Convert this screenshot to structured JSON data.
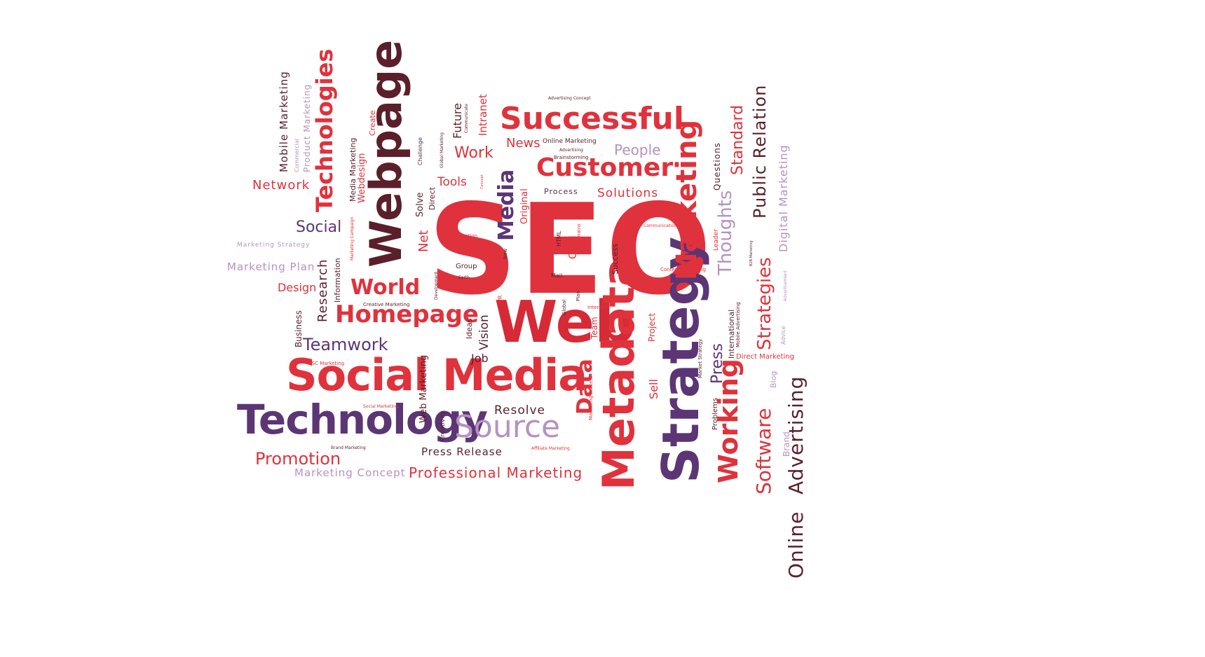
{
  "colors": {
    "red": "#e0323c",
    "dark_red": "#d62a36",
    "plum": "#5a2a4e",
    "purple": "#5c3575",
    "lavender": "#b592c2",
    "brown": "#5a1f2a",
    "pink": "#e86a70"
  },
  "words": {
    "seo": "SEO",
    "web": "Web",
    "webpage": "Webpage",
    "strategy": "Strategy",
    "metadata": "Metadata",
    "social_media": "Social Media",
    "technology": "Technology",
    "source": "Source",
    "successful": "Successful",
    "customer": "Customer",
    "marketing": "Marketing",
    "homepage": "Homepage",
    "world": "World",
    "teamwork": "Teamwork",
    "promotion": "Promotion",
    "professional_marketing": "Professional Marketing",
    "marketing_concept": "Marketing Concept",
    "press_release": "Press Release",
    "resolve": "Resolve",
    "technologies": "Technologies",
    "network": "Network",
    "mobile_marketing": "Mobile Marketing",
    "product_marketing": "Product Marketing",
    "commercial": "Commercial",
    "social": "Social",
    "marketing_plan": "Marketing Plan",
    "marketing_strategy": "Marketing Strategy",
    "design": "Design",
    "research": "Research",
    "information": "Information",
    "business": "Business",
    "media_marketing": "Media Marketing",
    "webdesign": "Webdesign",
    "create": "Create",
    "net": "Net",
    "solve": "Solve",
    "direct": "Direct",
    "challenge": "Challenge",
    "tools": "Tools",
    "work": "Work",
    "future": "Future",
    "intranet": "Intranet",
    "news": "News",
    "media": "Media",
    "original": "Original",
    "people": "People",
    "solutions": "Solutions",
    "process": "Process",
    "online_marketing": "Online Marketing",
    "brainstorming": "Brainstorming",
    "advertising_concept": "Advertising Concept",
    "merchandising": "Merchandising",
    "crm": "CRM",
    "html": "HTML",
    "domains": "Domains",
    "success": "Success",
    "market": "Market",
    "innovation": "Innovation",
    "group": "Group",
    "earth": "Earth",
    "vision": "Vision",
    "ideas": "Ideas",
    "job": "Job",
    "web_marketing": "Web Marketing",
    "creativity": "Creativity",
    "data": "Data",
    "team": "Team",
    "plan": "Plan",
    "internet": "Internet",
    "global": "Global",
    "sell": "Sell",
    "project": "Project",
    "thoughts": "Thoughts",
    "questions": "Questions",
    "standard": "Standard",
    "public_relation": "Public Relation",
    "digital_marketing": "Digital Marketing",
    "strategies": "Strategies",
    "leader": "Leader",
    "content_marketing": "Content Marketing",
    "communication": "Communication",
    "press": "Press",
    "international": "International",
    "working": "Working",
    "software": "Software",
    "advertising": "Advertising",
    "online": "Online",
    "blog": "Blog",
    "brand": "Brand",
    "direct_marketing": "Direct Marketing",
    "problems": "Problems",
    "mobile_advertising": "Mobile Advertising",
    "advice": "Advice",
    "advertisement": "Advertisement",
    "b2b_marketing": "B2B Marketing",
    "market_strategy": "Market Strategy",
    "bsc_marketing": "BSC Marketing",
    "brand_marketing": "Brand Marketing",
    "affiliate_marketing": "Affiliate Marketing",
    "creative_marketing": "Creative Marketing",
    "social_marketing": "Social Marketing",
    "development": "Development",
    "marketing_campaign": "Marketing Campaign",
    "communicate": "Communicate",
    "global_marketing": "Global Marketing",
    "advertising_small": "Advertising",
    "concept": "Concept",
    "new": "New",
    "mail": "Mail",
    "pr": "PR",
    "marketing_process": "Marketing Process"
  }
}
